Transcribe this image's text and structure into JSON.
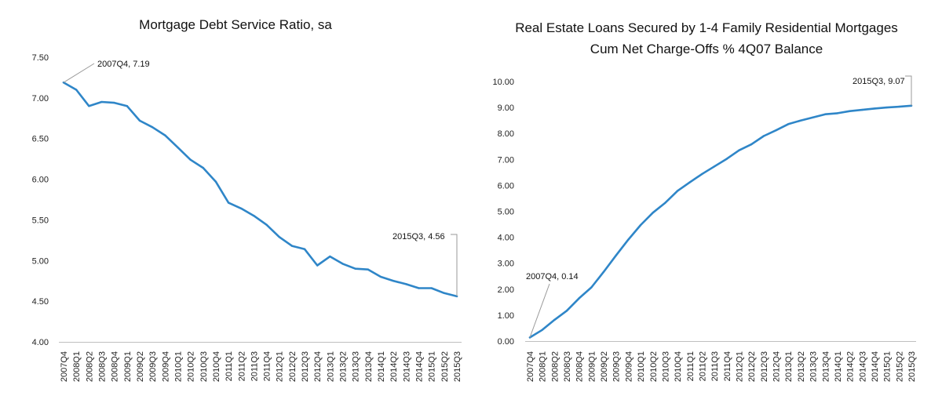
{
  "charts": [
    {
      "title_lines": [
        "Mortgage Debt Service Ratio, sa"
      ]
    },
    {
      "title_lines": [
        "Real Estate Loans Secured by 1-4 Family Residential Mortgages",
        "Cum Net Charge-Offs % 4Q07 Balance"
      ]
    }
  ],
  "chart_data": [
    {
      "type": "line",
      "title": "Mortgage Debt Service Ratio, sa",
      "categories": [
        "2007Q4",
        "2008Q1",
        "2008Q2",
        "2008Q3",
        "2008Q4",
        "2009Q1",
        "2009Q2",
        "2009Q3",
        "2009Q4",
        "2010Q1",
        "2010Q2",
        "2010Q3",
        "2010Q4",
        "2011Q1",
        "2011Q2",
        "2011Q3",
        "2011Q4",
        "2012Q1",
        "2012Q2",
        "2012Q3",
        "2012Q4",
        "2013Q1",
        "2013Q2",
        "2013Q3",
        "2013Q4",
        "2014Q1",
        "2014Q2",
        "2014Q3",
        "2014Q4",
        "2015Q1",
        "2015Q2",
        "2015Q3"
      ],
      "values": [
        7.19,
        7.1,
        6.9,
        6.95,
        6.94,
        6.9,
        6.72,
        6.64,
        6.54,
        6.39,
        6.24,
        6.14,
        5.97,
        5.71,
        5.64,
        5.55,
        5.44,
        5.29,
        5.18,
        5.14,
        4.94,
        5.05,
        4.96,
        4.9,
        4.89,
        4.8,
        4.75,
        4.71,
        4.66,
        4.66,
        4.6,
        4.56
      ],
      "ylim": [
        4.0,
        7.5
      ],
      "yticks": [
        "4.00",
        "4.50",
        "5.00",
        "5.50",
        "6.00",
        "6.50",
        "7.00",
        "7.50"
      ],
      "line_color": "#2f86c8",
      "grid": false,
      "annotations": [
        {
          "label": "2007Q4, 7.19",
          "index": 0
        },
        {
          "label": "2015Q3, 4.56",
          "index": 31
        }
      ]
    },
    {
      "type": "line",
      "title": "Real Estate Loans Secured by 1-4 Family Residential Mortgages Cum Net Charge-Offs % 4Q07 Balance",
      "categories": [
        "2007Q4",
        "2008Q1",
        "2008Q2",
        "2008Q3",
        "2008Q4",
        "2009Q1",
        "2009Q2",
        "2009Q3",
        "2009Q4",
        "2010Q1",
        "2010Q2",
        "2010Q3",
        "2010Q4",
        "2011Q1",
        "2011Q2",
        "2011Q3",
        "2011Q4",
        "2012Q1",
        "2012Q2",
        "2012Q3",
        "2012Q4",
        "2013Q1",
        "2013Q2",
        "2013Q3",
        "2013Q4",
        "2014Q1",
        "2014Q2",
        "2014Q3",
        "2014Q4",
        "2015Q1",
        "2015Q2",
        "2015Q3"
      ],
      "values": [
        0.14,
        0.43,
        0.82,
        1.17,
        1.65,
        2.07,
        2.67,
        3.3,
        3.91,
        4.47,
        4.95,
        5.33,
        5.79,
        6.12,
        6.44,
        6.73,
        7.02,
        7.35,
        7.58,
        7.9,
        8.12,
        8.36,
        8.5,
        8.62,
        8.74,
        8.78,
        8.86,
        8.91,
        8.96,
        9.0,
        9.03,
        9.07
      ],
      "ylim": [
        0.0,
        10.0
      ],
      "yticks": [
        "0.00",
        "1.00",
        "2.00",
        "3.00",
        "4.00",
        "5.00",
        "6.00",
        "7.00",
        "8.00",
        "9.00",
        "10.00"
      ],
      "line_color": "#2f86c8",
      "grid": false,
      "annotations": [
        {
          "label": "2007Q4, 0.14",
          "index": 0
        },
        {
          "label": "2015Q3, 9.07",
          "index": 31
        }
      ]
    }
  ]
}
